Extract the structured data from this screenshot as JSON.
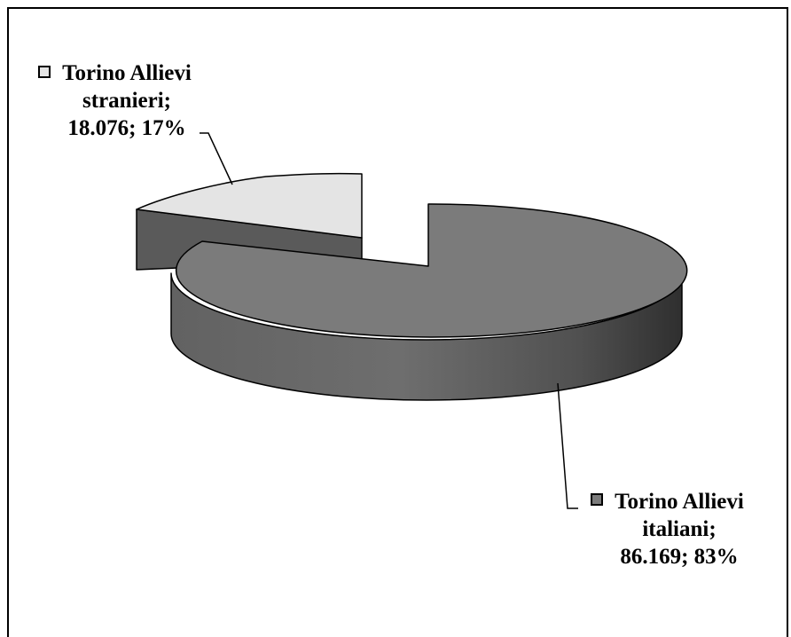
{
  "chart_data": {
    "type": "pie",
    "style": "3d-exploded",
    "legend": "none",
    "slices": [
      {
        "name": "Torino Allievi stranieri",
        "value": 18076,
        "percent": 17,
        "label_lines": [
          "Torino Allievi",
          "stranieri;",
          "18.076; 17%"
        ],
        "color": "#e4e4e4"
      },
      {
        "name": "Torino Allievi italiani",
        "value": 86169,
        "percent": 83,
        "label_lines": [
          "Torino Allievi",
          "italiani;",
          "86.169; 83%"
        ],
        "color": "#7b7b7b"
      }
    ]
  }
}
